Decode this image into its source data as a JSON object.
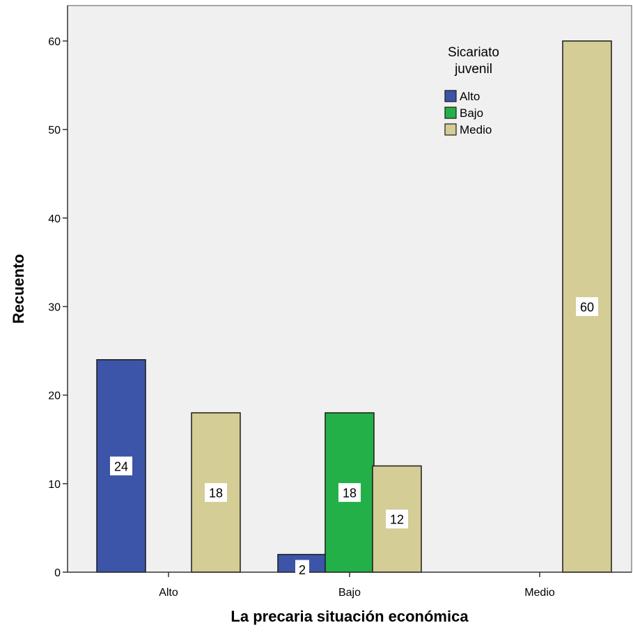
{
  "chart_data": {
    "type": "bar",
    "xlabel": "La precaria situación económica",
    "ylabel": "Recuento",
    "categories": [
      "Alto",
      "Bajo",
      "Medio"
    ],
    "legend_title": [
      "Sicariato",
      "juvenil"
    ],
    "legend_position": "top-right",
    "grid": false,
    "ylim": [
      0,
      64
    ],
    "yticks": [
      0,
      10,
      20,
      30,
      40,
      50,
      60
    ],
    "series": [
      {
        "name": "Alto",
        "color": "#3d55a8",
        "values": [
          24,
          2,
          null
        ]
      },
      {
        "name": "Bajo",
        "color": "#23b049",
        "values": [
          null,
          18,
          null
        ]
      },
      {
        "name": "Medio",
        "color": "#d4cd95",
        "values": [
          18,
          12,
          60
        ]
      }
    ],
    "data_labels": [
      {
        "series": "Alto",
        "category": "Alto",
        "text": "24"
      },
      {
        "series": "Medio",
        "category": "Alto",
        "text": "18"
      },
      {
        "series": "Alto",
        "category": "Bajo",
        "text": "2"
      },
      {
        "series": "Bajo",
        "category": "Bajo",
        "text": "18"
      },
      {
        "series": "Medio",
        "category": "Bajo",
        "text": "12"
      },
      {
        "series": "Medio",
        "category": "Medio",
        "text": "60"
      }
    ],
    "background_color": "#f0f0f0"
  }
}
